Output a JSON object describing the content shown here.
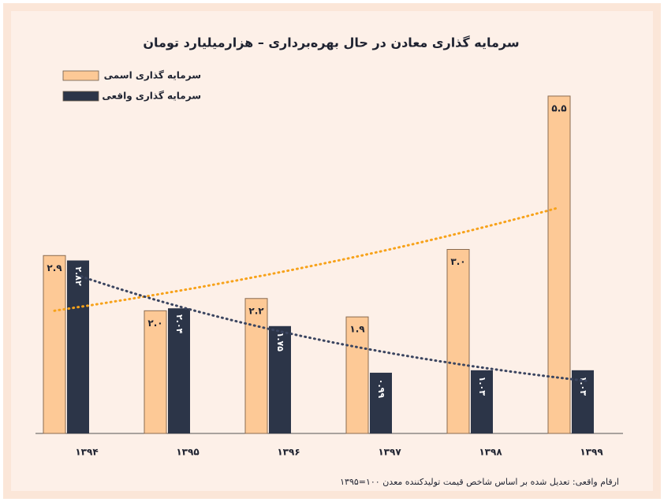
{
  "chart_data": {
    "type": "bar",
    "title": "سرمایه گذاری معادن در حال بهره‌برداری – هزارمیلیارد تومان",
    "categories": [
      "۱۳۹۴",
      "۱۳۹۵",
      "۱۳۹۶",
      "۱۳۹۷",
      "۱۳۹۸",
      "۱۳۹۹"
    ],
    "series": [
      {
        "name": "سرمایه گذاری اسمی",
        "color": "#fdc996",
        "values": [
          2.9,
          2.0,
          2.2,
          1.9,
          3.0,
          5.5
        ],
        "value_labels": [
          "۲.۹",
          "۲.۰",
          "۲.۲",
          "۱.۹",
          "۳.۰",
          "۵.۵"
        ],
        "trend_color": "#f7a21a"
      },
      {
        "name": "سرمایه گذاری واقعی",
        "color": "#2c3548",
        "values": [
          2.82,
          2.04,
          1.75,
          0.99,
          1.03,
          1.03
        ],
        "value_labels": [
          "۲.۸۲",
          "۲.۰۴",
          "۱.۷۵",
          "۰.۹۹",
          "۱.۰۳",
          "۱.۰۳"
        ],
        "trend_color": "#3b4560"
      }
    ],
    "trendline": "exponential",
    "ylim": [
      0,
      6
    ],
    "note": "ارقام واقعی: تعدیل شده بر اساس شاخص قیمت تولیدکننده معدن ۱۰۰=۱۳۹۵"
  }
}
